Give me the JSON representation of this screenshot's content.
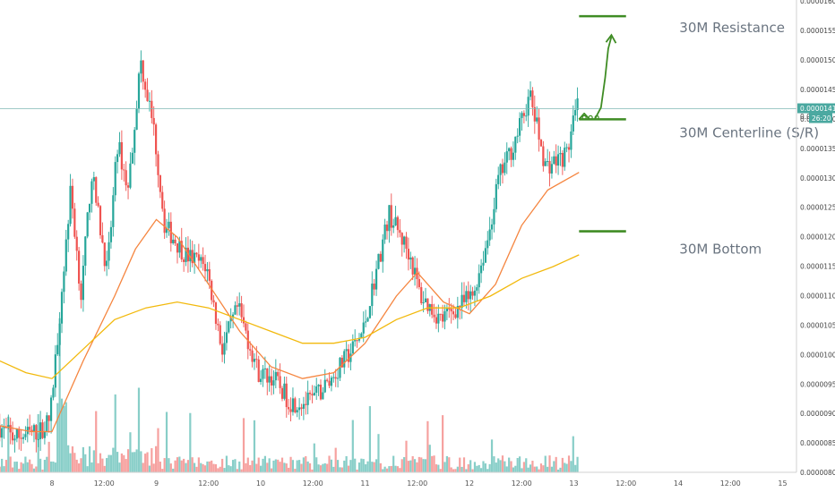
{
  "chart_data": {
    "type": "candlestick",
    "title": "",
    "xlabel": "",
    "ylabel": "",
    "ylim": [
      7.675e-06,
      1.6025e-05
    ],
    "grid": false,
    "y_ticks": [
      "0.00001600",
      "0.00001550",
      "0.00001500",
      "0.00001450",
      "0.00001400",
      "0.00001350",
      "0.00001300",
      "0.00001250",
      "0.00001200",
      "0.00001150",
      "0.00001100",
      "0.00001050",
      "0.00001000",
      "0.00000950",
      "0.00000900",
      "0.00000850",
      "0.00000800"
    ],
    "x_ticks": [
      "8",
      "12:00",
      "9",
      "12:00",
      "10",
      "12:00",
      "11",
      "12:00",
      "12",
      "12:00",
      "13",
      "12:00",
      "14",
      "12:00",
      "15"
    ],
    "current_price": {
      "value": 1.418e-05,
      "label": "0.00001418",
      "countdown": "26:20",
      "partial": "0.000"
    },
    "colors": {
      "up": "#26a69a",
      "down": "#ef5350",
      "ma_fast": "#f5853f",
      "ma_slow": "#f2b90d",
      "levels": "#3f8c24",
      "price_line": "#7fb8b5"
    },
    "levels": [
      {
        "name": "30M Resistance",
        "value": 1.575e-05,
        "x_start": 5.05,
        "x_end": 5.5
      },
      {
        "name": "30M Centerline (S/R)",
        "value": 1.4e-05,
        "x_start": 5.05,
        "x_end": 5.5
      },
      {
        "name": "30M Bottom",
        "value": 1.21e-05,
        "x_start": 5.05,
        "x_end": 5.5
      }
    ],
    "projection": [
      [
        5.05,
        1.4e-05
      ],
      [
        5.1,
        1.41e-05
      ],
      [
        5.15,
        1.4e-05
      ],
      [
        5.2,
        1.4e-05
      ],
      [
        5.26,
        1.42e-05
      ],
      [
        5.3,
        1.47e-05
      ],
      [
        5.33,
        1.52e-05
      ],
      [
        5.36,
        1.54e-05
      ]
    ],
    "price_path": [
      [
        -0.5,
        8.8e-06
      ],
      [
        -0.35,
        8.6e-06
      ],
      [
        -0.1,
        8.7e-06
      ],
      [
        0,
        8.9e-06
      ],
      [
        0.1,
        1.08e-05
      ],
      [
        0.2,
        1.28e-05
      ],
      [
        0.3,
        1.1e-05
      ],
      [
        0.4,
        1.31e-05
      ],
      [
        0.55,
        1.14e-05
      ],
      [
        0.65,
        1.36e-05
      ],
      [
        0.75,
        1.28e-05
      ],
      [
        0.87,
        1.5e-05
      ],
      [
        1.0,
        1.38e-05
      ],
      [
        1.1,
        1.22e-05
      ],
      [
        1.3,
        1.17e-05
      ],
      [
        1.5,
        1.15e-05
      ],
      [
        1.65,
        1.01e-05
      ],
      [
        1.8,
        1.08e-05
      ],
      [
        2.0,
        9.7e-06
      ],
      [
        2.15,
        9.6e-06
      ],
      [
        2.3,
        9.2e-06
      ],
      [
        2.5,
        9.2e-06
      ],
      [
        2.7,
        9.6e-06
      ],
      [
        2.9,
        1.01e-05
      ],
      [
        3.0,
        1.04e-05
      ],
      [
        3.1,
        1.12e-05
      ],
      [
        3.25,
        1.24e-05
      ],
      [
        3.45,
        1.17e-05
      ],
      [
        3.55,
        1.1e-05
      ],
      [
        3.75,
        1.06e-05
      ],
      [
        3.9,
        1.08e-05
      ],
      [
        4.05,
        1.1e-05
      ],
      [
        4.2,
        1.2e-05
      ],
      [
        4.3,
        1.3e-05
      ],
      [
        4.45,
        1.36e-05
      ],
      [
        4.6,
        1.44e-05
      ],
      [
        4.75,
        1.32e-05
      ],
      [
        4.85,
        1.33e-05
      ],
      [
        4.95,
        1.34e-05
      ],
      [
        5.05,
        1.42e-05
      ]
    ],
    "ma_fast": [
      [
        -0.5,
        8.8e-06
      ],
      [
        -0.2,
        8.7e-06
      ],
      [
        0,
        8.7e-06
      ],
      [
        0.3,
        9.9e-06
      ],
      [
        0.6,
        1.1e-05
      ],
      [
        0.8,
        1.18e-05
      ],
      [
        1.0,
        1.23e-05
      ],
      [
        1.2,
        1.2e-05
      ],
      [
        1.5,
        1.12e-05
      ],
      [
        1.8,
        1.04e-05
      ],
      [
        2.1,
        9.8e-06
      ],
      [
        2.4,
        9.6e-06
      ],
      [
        2.7,
        9.7e-06
      ],
      [
        3.0,
        1.02e-05
      ],
      [
        3.3,
        1.1e-05
      ],
      [
        3.5,
        1.14e-05
      ],
      [
        3.75,
        1.09e-05
      ],
      [
        4.0,
        1.07e-05
      ],
      [
        4.25,
        1.12e-05
      ],
      [
        4.5,
        1.22e-05
      ],
      [
        4.75,
        1.28e-05
      ],
      [
        5.05,
        1.31e-05
      ]
    ],
    "ma_slow": [
      [
        -0.5,
        9.9e-06
      ],
      [
        -0.25,
        9.7e-06
      ],
      [
        0,
        9.6e-06
      ],
      [
        0.3,
        1.01e-05
      ],
      [
        0.6,
        1.06e-05
      ],
      [
        0.9,
        1.08e-05
      ],
      [
        1.2,
        1.09e-05
      ],
      [
        1.5,
        1.08e-05
      ],
      [
        1.8,
        1.06e-05
      ],
      [
        2.1,
        1.04e-05
      ],
      [
        2.4,
        1.02e-05
      ],
      [
        2.7,
        1.02e-05
      ],
      [
        3.0,
        1.03e-05
      ],
      [
        3.3,
        1.06e-05
      ],
      [
        3.6,
        1.08e-05
      ],
      [
        3.9,
        1.08e-05
      ],
      [
        4.2,
        1.1e-05
      ],
      [
        4.5,
        1.13e-05
      ],
      [
        4.8,
        1.15e-05
      ],
      [
        5.05,
        1.17e-05
      ]
    ]
  }
}
